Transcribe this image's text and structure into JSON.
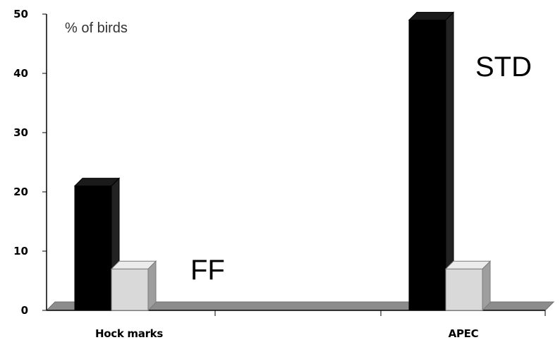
{
  "chart_data": {
    "type": "bar",
    "title": "",
    "unit_label": "% of birds",
    "categories": [
      "Hock marks",
      "APEC"
    ],
    "series": [
      {
        "name": "STD",
        "values": [
          21,
          49
        ],
        "color": "#000000"
      },
      {
        "name": "FF",
        "values": [
          7,
          7
        ],
        "color": "#d9d9d9"
      }
    ],
    "ylim": [
      0,
      50
    ],
    "yticks": [
      "0",
      "10",
      "20",
      "30",
      "40",
      "50"
    ],
    "grid": false,
    "style": "3d-column"
  }
}
